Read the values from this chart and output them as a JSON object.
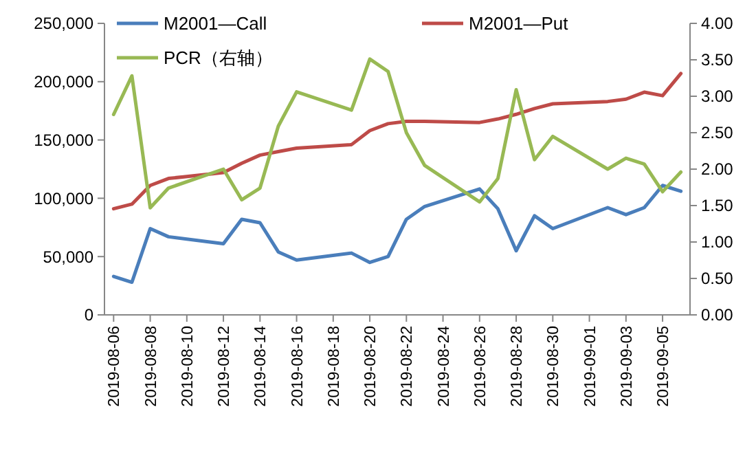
{
  "chart_data": {
    "type": "line",
    "x": [
      "2019-08-06",
      "2019-08-07",
      "2019-08-08",
      "2019-08-09",
      "2019-08-12",
      "2019-08-13",
      "2019-08-14",
      "2019-08-15",
      "2019-08-16",
      "2019-08-19",
      "2019-08-20",
      "2019-08-21",
      "2019-08-22",
      "2019-08-23",
      "2019-08-26",
      "2019-08-27",
      "2019-08-28",
      "2019-08-29",
      "2019-08-30",
      "2019-09-02",
      "2019-09-03",
      "2019-09-04",
      "2019-09-05",
      "2019-09-06"
    ],
    "series": [
      {
        "name": "M2001—Call",
        "color": "#4a7ebb",
        "values": [
          33000,
          28000,
          74000,
          67000,
          61000,
          82000,
          79000,
          54000,
          47000,
          53000,
          45000,
          50000,
          82000,
          93000,
          108000,
          91000,
          55000,
          85000,
          74000,
          92000,
          86000,
          92000,
          111000,
          106000
        ]
      },
      {
        "name": "M2001—Put",
        "color": "#be4b48",
        "values": [
          91000,
          95000,
          111000,
          117000,
          122000,
          130000,
          137000,
          140000,
          143000,
          146000,
          158000,
          164000,
          166000,
          166000,
          165000,
          168000,
          172000,
          177000,
          181000,
          183000,
          185000,
          191000,
          188000,
          207000
        ]
      },
      {
        "name": "PCR（右轴）",
        "color": "#98b954",
        "axis": "y2",
        "values": [
          2.75,
          3.28,
          1.47,
          1.74,
          2.0,
          1.58,
          1.74,
          2.59,
          3.06,
          2.81,
          3.51,
          3.34,
          2.5,
          2.05,
          1.55,
          1.87,
          3.09,
          2.13,
          2.45,
          2.0,
          2.15,
          2.07,
          1.69,
          1.96
        ]
      }
    ],
    "xlim": [
      "2019-08-05T12:00",
      "2019-09-06T12:00"
    ],
    "xticks": [
      "2019-08-06",
      "2019-08-08",
      "2019-08-10",
      "2019-08-12",
      "2019-08-14",
      "2019-08-16",
      "2019-08-18",
      "2019-08-20",
      "2019-08-22",
      "2019-08-24",
      "2019-08-26",
      "2019-08-28",
      "2019-08-30",
      "2019-09-01",
      "2019-09-03",
      "2019-09-05"
    ],
    "ylim": [
      0,
      250000
    ],
    "yticks": [
      0,
      {
        "value": 50000,
        "label": "50,000"
      },
      {
        "value": 100000,
        "label": "100,000"
      },
      {
        "value": 150000,
        "label": "150,000"
      },
      {
        "value": 200000,
        "label": "200,000"
      },
      {
        "value": 250000,
        "label": "250,000"
      }
    ],
    "y2lim": [
      0,
      4
    ],
    "y2ticks": [
      {
        "value": 0,
        "label": "0.00"
      },
      {
        "value": 0.5,
        "label": "0.50"
      },
      {
        "value": 1,
        "label": "1.00"
      },
      {
        "value": 1.5,
        "label": "1.50"
      },
      {
        "value": 2,
        "label": "2.00"
      },
      {
        "value": 2.5,
        "label": "2.50"
      },
      {
        "value": 3,
        "label": "3.00"
      },
      {
        "value": 3.5,
        "label": "3.50"
      },
      {
        "value": 4,
        "label": "4.00"
      }
    ],
    "legend": "top",
    "grid": false,
    "marker": "none",
    "line_style": "solid"
  }
}
